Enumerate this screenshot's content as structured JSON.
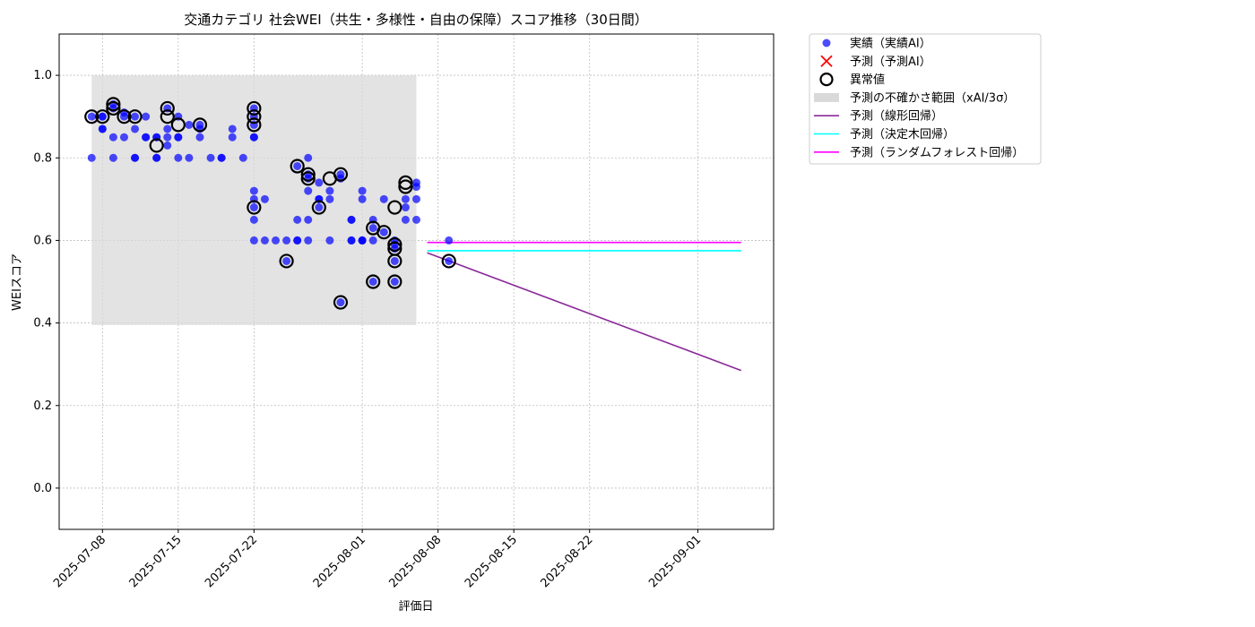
{
  "chart_data": {
    "type": "scatter",
    "title": "交通カテゴリ 社会WEI（共生・多様性・自由の保障）スコア推移（30日間）",
    "xlabel": "評価日",
    "ylabel": "WEIスコア",
    "xlim": [
      "2025-07-04",
      "2025-09-08"
    ],
    "ylim": [
      -0.1,
      1.1
    ],
    "xticks": [
      "2025-07-08",
      "2025-07-15",
      "2025-07-22",
      "2025-08-01",
      "2025-08-08",
      "2025-08-15",
      "2025-08-22",
      "2025-09-01"
    ],
    "yticks": [
      "0.0",
      "0.2",
      "0.4",
      "0.6",
      "0.8",
      "1.0"
    ],
    "grid": true,
    "legend_position": "outside-upper-right",
    "uncertainty_band": {
      "label": "予測の不確かさ範囲（xAI/3σ）",
      "x": [
        "2025-07-07",
        "2025-08-06"
      ],
      "y": [
        0.395,
        1.0
      ],
      "color": "#d9d9d9"
    },
    "series": [
      {
        "name": "実績（実績AI）",
        "kind": "scatter",
        "color": "#0000ff",
        "points": [
          [
            "2025-07-07",
            0.8
          ],
          [
            "2025-07-07",
            0.9
          ],
          [
            "2025-07-08",
            0.87
          ],
          [
            "2025-07-08",
            0.9
          ],
          [
            "2025-07-08",
            0.9
          ],
          [
            "2025-07-08",
            0.87
          ],
          [
            "2025-07-09",
            0.85
          ],
          [
            "2025-07-09",
            0.8
          ],
          [
            "2025-07-09",
            0.92
          ],
          [
            "2025-07-09",
            0.93
          ],
          [
            "2025-07-10",
            0.85
          ],
          [
            "2025-07-10",
            0.9
          ],
          [
            "2025-07-10",
            0.91
          ],
          [
            "2025-07-11",
            0.8
          ],
          [
            "2025-07-11",
            0.87
          ],
          [
            "2025-07-11",
            0.9
          ],
          [
            "2025-07-11",
            0.8
          ],
          [
            "2025-07-12",
            0.85
          ],
          [
            "2025-07-12",
            0.9
          ],
          [
            "2025-07-12",
            0.85
          ],
          [
            "2025-07-13",
            0.8
          ],
          [
            "2025-07-13",
            0.8
          ],
          [
            "2025-07-13",
            0.85
          ],
          [
            "2025-07-13",
            0.85
          ],
          [
            "2025-07-14",
            0.83
          ],
          [
            "2025-07-14",
            0.87
          ],
          [
            "2025-07-14",
            0.85
          ],
          [
            "2025-07-14",
            0.92
          ],
          [
            "2025-07-15",
            0.8
          ],
          [
            "2025-07-15",
            0.85
          ],
          [
            "2025-07-15",
            0.85
          ],
          [
            "2025-07-15",
            0.9
          ],
          [
            "2025-07-16",
            0.88
          ],
          [
            "2025-07-16",
            0.8
          ],
          [
            "2025-07-17",
            0.85
          ],
          [
            "2025-07-17",
            0.87
          ],
          [
            "2025-07-17",
            0.88
          ],
          [
            "2025-07-18",
            0.8
          ],
          [
            "2025-07-19",
            0.8
          ],
          [
            "2025-07-19",
            0.8
          ],
          [
            "2025-07-20",
            0.85
          ],
          [
            "2025-07-20",
            0.87
          ],
          [
            "2025-07-21",
            0.8
          ],
          [
            "2025-07-22",
            0.88
          ],
          [
            "2025-07-22",
            0.9
          ],
          [
            "2025-07-22",
            0.92
          ],
          [
            "2025-07-22",
            0.85
          ],
          [
            "2025-07-22",
            0.85
          ],
          [
            "2025-07-22",
            0.72
          ],
          [
            "2025-07-22",
            0.7
          ],
          [
            "2025-07-22",
            0.6
          ],
          [
            "2025-07-22",
            0.65
          ],
          [
            "2025-07-22",
            0.68
          ],
          [
            "2025-07-23",
            0.6
          ],
          [
            "2025-07-23",
            0.7
          ],
          [
            "2025-07-24",
            0.6
          ],
          [
            "2025-07-25",
            0.6
          ],
          [
            "2025-07-25",
            0.55
          ],
          [
            "2025-07-26",
            0.6
          ],
          [
            "2025-07-26",
            0.65
          ],
          [
            "2025-07-26",
            0.78
          ],
          [
            "2025-07-26",
            0.6
          ],
          [
            "2025-07-27",
            0.65
          ],
          [
            "2025-07-27",
            0.75
          ],
          [
            "2025-07-27",
            0.76
          ],
          [
            "2025-07-27",
            0.72
          ],
          [
            "2025-07-27",
            0.6
          ],
          [
            "2025-07-27",
            0.8
          ],
          [
            "2025-07-28",
            0.7
          ],
          [
            "2025-07-28",
            0.74
          ],
          [
            "2025-07-28",
            0.7
          ],
          [
            "2025-07-28",
            0.68
          ],
          [
            "2025-07-29",
            0.6
          ],
          [
            "2025-07-29",
            0.72
          ],
          [
            "2025-07-29",
            0.7
          ],
          [
            "2025-07-30",
            0.75
          ],
          [
            "2025-07-30",
            0.76
          ],
          [
            "2025-07-30",
            0.45
          ],
          [
            "2025-07-31",
            0.65
          ],
          [
            "2025-07-31",
            0.6
          ],
          [
            "2025-07-31",
            0.6
          ],
          [
            "2025-07-31",
            0.65
          ],
          [
            "2025-08-01",
            0.72
          ],
          [
            "2025-08-01",
            0.7
          ],
          [
            "2025-08-01",
            0.6
          ],
          [
            "2025-08-01",
            0.6
          ],
          [
            "2025-08-01",
            0.6
          ],
          [
            "2025-08-02",
            0.63
          ],
          [
            "2025-08-02",
            0.5
          ],
          [
            "2025-08-02",
            0.6
          ],
          [
            "2025-08-02",
            0.65
          ],
          [
            "2025-08-03",
            0.62
          ],
          [
            "2025-08-03",
            0.7
          ],
          [
            "2025-08-04",
            0.55
          ],
          [
            "2025-08-04",
            0.5
          ],
          [
            "2025-08-04",
            0.6
          ],
          [
            "2025-08-04",
            0.59
          ],
          [
            "2025-08-04",
            0.58
          ],
          [
            "2025-08-05",
            0.68
          ],
          [
            "2025-08-05",
            0.7
          ],
          [
            "2025-08-05",
            0.65
          ],
          [
            "2025-08-06",
            0.73
          ],
          [
            "2025-08-06",
            0.74
          ],
          [
            "2025-08-06",
            0.65
          ],
          [
            "2025-08-06",
            0.7
          ],
          [
            "2025-08-09",
            0.55
          ],
          [
            "2025-08-09",
            0.6
          ]
        ]
      },
      {
        "name": "予測（予測AI）",
        "kind": "x-marker",
        "color": "#ff0000",
        "points": []
      },
      {
        "name": "異常値",
        "kind": "outlier-ring",
        "color": "#000000",
        "points": [
          [
            "2025-07-07",
            0.9
          ],
          [
            "2025-07-08",
            0.9
          ],
          [
            "2025-07-09",
            0.93
          ],
          [
            "2025-07-09",
            0.92
          ],
          [
            "2025-07-10",
            0.9
          ],
          [
            "2025-07-11",
            0.9
          ],
          [
            "2025-07-13",
            0.83
          ],
          [
            "2025-07-14",
            0.92
          ],
          [
            "2025-07-14",
            0.9
          ],
          [
            "2025-07-15",
            0.88
          ],
          [
            "2025-07-17",
            0.88
          ],
          [
            "2025-07-22",
            0.92
          ],
          [
            "2025-07-22",
            0.9
          ],
          [
            "2025-07-22",
            0.88
          ],
          [
            "2025-07-22",
            0.68
          ],
          [
            "2025-07-25",
            0.55
          ],
          [
            "2025-07-26",
            0.78
          ],
          [
            "2025-07-27",
            0.76
          ],
          [
            "2025-07-27",
            0.75
          ],
          [
            "2025-07-28",
            0.68
          ],
          [
            "2025-07-29",
            0.75
          ],
          [
            "2025-07-30",
            0.76
          ],
          [
            "2025-07-30",
            0.45
          ],
          [
            "2025-08-02",
            0.5
          ],
          [
            "2025-08-02",
            0.63
          ],
          [
            "2025-08-03",
            0.62
          ],
          [
            "2025-08-04",
            0.68
          ],
          [
            "2025-08-04",
            0.59
          ],
          [
            "2025-08-04",
            0.58
          ],
          [
            "2025-08-04",
            0.55
          ],
          [
            "2025-08-04",
            0.5
          ],
          [
            "2025-08-05",
            0.74
          ],
          [
            "2025-08-05",
            0.73
          ],
          [
            "2025-08-09",
            0.55
          ]
        ]
      },
      {
        "name": "予測（線形回帰）",
        "kind": "line",
        "color": "#8b2a9a",
        "points": [
          [
            "2025-08-07",
            0.57
          ],
          [
            "2025-09-05",
            0.285
          ]
        ]
      },
      {
        "name": "予測（決定木回帰）",
        "kind": "line",
        "color": "#00ffff",
        "points": [
          [
            "2025-08-07",
            0.575
          ],
          [
            "2025-09-05",
            0.575
          ]
        ]
      },
      {
        "name": "予測（ランダムフォレスト回帰）",
        "kind": "line",
        "color": "#ff00ff",
        "points": [
          [
            "2025-08-07",
            0.595
          ],
          [
            "2025-09-05",
            0.595
          ]
        ]
      }
    ],
    "legend": [
      {
        "label": "実績（実績AI）",
        "marker": "dot",
        "color": "#0000ff"
      },
      {
        "label": "予測（予測AI）",
        "marker": "x",
        "color": "#ff0000"
      },
      {
        "label": "異常値",
        "marker": "ring",
        "color": "#000000"
      },
      {
        "label": "予測の不確かさ範囲（xAI/3σ）",
        "marker": "box",
        "color": "#d9d9d9"
      },
      {
        "label": "予測（線形回帰）",
        "marker": "line",
        "color": "#8b2a9a"
      },
      {
        "label": "予測（決定木回帰）",
        "marker": "line",
        "color": "#00ffff"
      },
      {
        "label": "予測（ランダムフォレスト回帰）",
        "marker": "line",
        "color": "#ff00ff"
      }
    ]
  }
}
